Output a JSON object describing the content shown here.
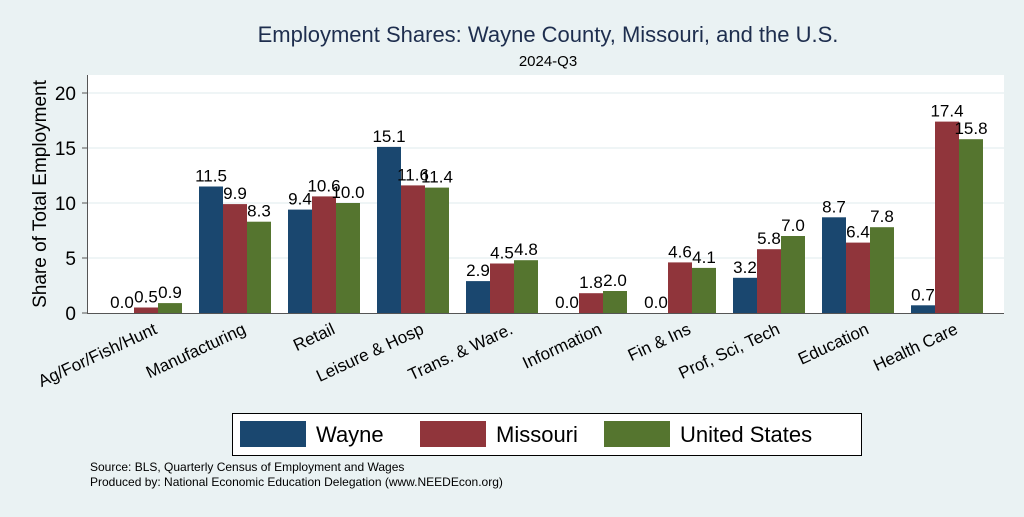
{
  "chart_data": {
    "type": "bar",
    "title": "Employment Shares: Wayne County, Missouri, and the U.S.",
    "subtitle": "2024-Q3",
    "xlabel": "",
    "ylabel": "Share of Total Employment",
    "ylim": [
      0,
      21.6
    ],
    "yticks": [
      0,
      5,
      10,
      15,
      20
    ],
    "grid": true,
    "legend_position": "bottom",
    "categories": [
      "Ag/For/Fish/Hunt",
      "Manufacturing",
      "Retail",
      "Leisure & Hosp",
      "Trans. & Ware.",
      "Information",
      "Fin & Ins",
      "Prof, Sci, Tech",
      "Education",
      "Health Care"
    ],
    "series": [
      {
        "name": "Wayne",
        "color": "#1A476F",
        "values": [
          0.0,
          11.5,
          9.4,
          15.1,
          2.9,
          0.0,
          0.0,
          3.2,
          8.7,
          0.7
        ]
      },
      {
        "name": "Missouri",
        "color": "#90353B",
        "values": [
          0.5,
          9.9,
          10.6,
          11.6,
          4.5,
          1.8,
          4.6,
          5.8,
          6.4,
          17.4
        ]
      },
      {
        "name": "United States",
        "color": "#55752F",
        "values": [
          0.9,
          8.3,
          10.0,
          11.4,
          4.8,
          2.0,
          4.1,
          7.0,
          7.8,
          15.8
        ]
      }
    ],
    "notes": [
      "Source: BLS, Quarterly Census of Employment and Wages",
      "Produced by: National Economic Education Delegation (www.NEEDEcon.org)"
    ]
  }
}
